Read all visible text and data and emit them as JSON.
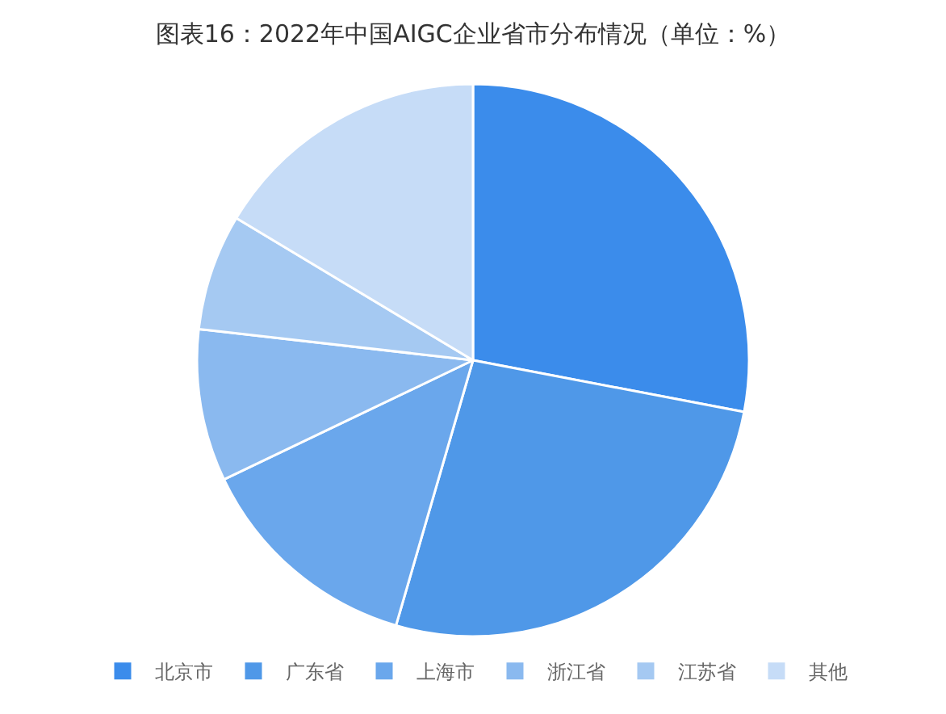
{
  "chart_data": {
    "type": "pie",
    "title": "图表16：2022年中国AIGC企业省市分布情况（单位：%）",
    "categories": [
      "北京市",
      "广东省",
      "上海市",
      "浙江省",
      "江苏省",
      "其他"
    ],
    "values": [
      28,
      26.5,
      13.4,
      8.9,
      6.8,
      16.4
    ],
    "colors": [
      "#3b8ceb",
      "#4f98e8",
      "#6aa7ec",
      "#8ab9ef",
      "#a5c9f2",
      "#c6dcf7"
    ],
    "legend": "bottom"
  }
}
